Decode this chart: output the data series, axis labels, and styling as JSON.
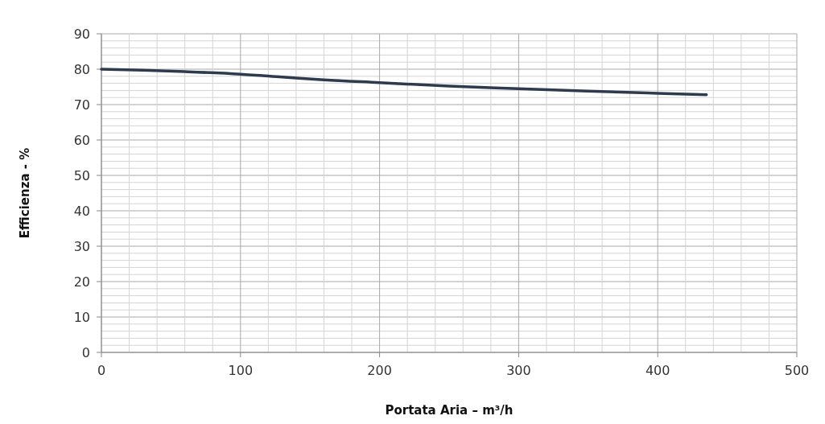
{
  "chart_data": {
    "type": "line",
    "xlabel": "Portata Aria – m³/h",
    "ylabel": "Efficienza - %",
    "xlim": [
      0,
      500
    ],
    "ylim": [
      0,
      90
    ],
    "xticks": [
      0,
      {
        "value": 20,
        "label": null
      },
      {
        "value": 40,
        "label": null
      },
      {
        "value": 60,
        "label": null
      },
      {
        "value": 80,
        "label": null
      },
      100,
      {
        "value": 120,
        "label": null
      },
      {
        "value": 140,
        "label": null
      },
      {
        "value": 160,
        "label": null
      },
      {
        "value": 180,
        "label": null
      },
      200,
      {
        "value": 220,
        "label": null
      },
      {
        "value": 240,
        "label": null
      },
      {
        "value": 260,
        "label": null
      },
      {
        "value": 280,
        "label": null
      },
      300,
      {
        "value": 320,
        "label": null
      },
      {
        "value": 340,
        "label": null
      },
      {
        "value": 360,
        "label": null
      },
      {
        "value": 380,
        "label": null
      },
      400,
      {
        "value": 420,
        "label": null
      },
      {
        "value": 440,
        "label": null
      },
      {
        "value": 460,
        "label": null
      },
      {
        "value": 480,
        "label": null
      },
      500
    ],
    "yticks": [
      0,
      {
        "value": 2,
        "label": null
      },
      {
        "value": 4,
        "label": null
      },
      {
        "value": 6,
        "label": null
      },
      {
        "value": 8,
        "label": null
      },
      10,
      {
        "value": 12,
        "label": null
      },
      {
        "value": 14,
        "label": null
      },
      {
        "value": 16,
        "label": null
      },
      {
        "value": 18,
        "label": null
      },
      20,
      {
        "value": 22,
        "label": null
      },
      {
        "value": 24,
        "label": null
      },
      {
        "value": 26,
        "label": null
      },
      {
        "value": 28,
        "label": null
      },
      30,
      {
        "value": 32,
        "label": null
      },
      {
        "value": 34,
        "label": null
      },
      {
        "value": 36,
        "label": null
      },
      {
        "value": 38,
        "label": null
      },
      40,
      {
        "value": 42,
        "label": null
      },
      {
        "value": 44,
        "label": null
      },
      {
        "value": 46,
        "label": null
      },
      {
        "value": 48,
        "label": null
      },
      50,
      {
        "value": 52,
        "label": null
      },
      {
        "value": 54,
        "label": null
      },
      {
        "value": 56,
        "label": null
      },
      {
        "value": 58,
        "label": null
      },
      60,
      {
        "value": 62,
        "label": null
      },
      {
        "value": 64,
        "label": null
      },
      {
        "value": 66,
        "label": null
      },
      {
        "value": 68,
        "label": null
      },
      70,
      {
        "value": 72,
        "label": null
      },
      {
        "value": 74,
        "label": null
      },
      {
        "value": 76,
        "label": null
      },
      {
        "value": 78,
        "label": null
      },
      80,
      {
        "value": 82,
        "label": null
      },
      {
        "value": 84,
        "label": null
      },
      {
        "value": 86,
        "label": null
      },
      {
        "value": 88,
        "label": null
      },
      90
    ],
    "grid": true,
    "line_style": "solid",
    "series": [
      {
        "color": "#2e3a4e",
        "x": [
          0,
          30,
          60,
          100,
          130,
          160,
          200,
          250,
          300,
          350,
          400,
          435
        ],
        "values": [
          80,
          79.7,
          79.3,
          78.6,
          77.8,
          77,
          76.2,
          75.2,
          74.5,
          73.8,
          73.2,
          72.8
        ]
      }
    ]
  }
}
